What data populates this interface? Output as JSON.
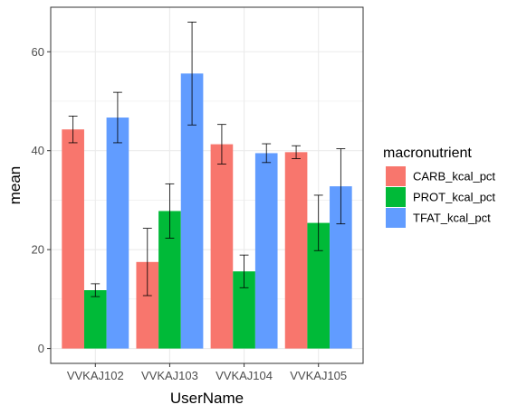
{
  "chart_data": {
    "type": "bar",
    "xlabel": "UserName",
    "ylabel": "mean",
    "ylim": [
      -3,
      69
    ],
    "yticks": [
      0,
      20,
      40,
      60
    ],
    "grid": true,
    "legend_position": "right",
    "legend_title": "macronutrient",
    "categories": [
      "VVKAJ102",
      "VVKAJ103",
      "VVKAJ104",
      "VVKAJ105"
    ],
    "series": [
      {
        "name": "CARB_kcal_pct",
        "color": "#F8766D",
        "values": [
          44.3,
          17.5,
          41.3,
          39.7
        ],
        "error": [
          2.7,
          6.8,
          4.0,
          1.3
        ]
      },
      {
        "name": "PROT_kcal_pct",
        "color": "#00BA38",
        "values": [
          11.8,
          27.8,
          15.6,
          25.4
        ],
        "error": [
          1.3,
          5.5,
          3.3,
          5.6
        ]
      },
      {
        "name": "TFAT_kcal_pct",
        "color": "#619CFF",
        "values": [
          46.7,
          55.6,
          39.5,
          32.8
        ],
        "error": [
          5.1,
          10.4,
          1.9,
          7.6
        ]
      }
    ]
  }
}
